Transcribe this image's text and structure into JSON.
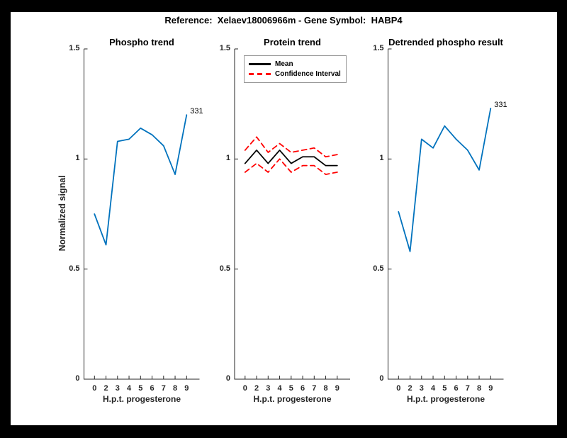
{
  "figure": {
    "title": "Reference:  Xelaev18006966m - Gene Symbol:  HABP4",
    "background_color": "#ffffff",
    "border_color": "#000000",
    "accent_blue": "#0072BD",
    "accent_red": "#ff0000"
  },
  "chart_data": [
    {
      "type": "line",
      "title": "Phospho trend",
      "xlabel": "H.p.t. progesterone",
      "ylabel": "Normalized signal",
      "categories": [
        "0",
        "2",
        "3",
        "4",
        "5",
        "6",
        "7",
        "8",
        "9"
      ],
      "yticks": [
        0,
        0.5,
        1,
        1.5
      ],
      "ytick_labels": [
        "0",
        "0.5",
        "1",
        "1.5"
      ],
      "ylim": [
        0,
        1.5
      ],
      "grid": false,
      "legend": null,
      "end_label": "331",
      "series": [
        {
          "name": "phospho-signal",
          "color": "#0072BD",
          "style": "solid",
          "line_width": 1.8,
          "values": [
            0.75,
            0.61,
            1.08,
            1.09,
            1.14,
            1.11,
            1.06,
            0.93,
            1.2
          ]
        }
      ]
    },
    {
      "type": "line",
      "title": "Protein trend",
      "xlabel": "H.p.t. progesterone",
      "ylabel": "",
      "categories": [
        "0",
        "2",
        "3",
        "4",
        "5",
        "6",
        "7",
        "8",
        "9"
      ],
      "yticks": [
        0,
        0.5,
        1,
        1.5
      ],
      "ytick_labels": [
        "0",
        "0.5",
        "1",
        "1.5"
      ],
      "ylim": [
        0,
        1.5
      ],
      "grid": false,
      "legend": {
        "position": "top-left",
        "entries": [
          {
            "label": "Mean",
            "color": "#000000",
            "style": "solid"
          },
          {
            "label": "Confidence Interval",
            "color": "#ff0000",
            "style": "dashed"
          }
        ]
      },
      "end_label": null,
      "series": [
        {
          "name": "mean",
          "color": "#000000",
          "style": "solid",
          "line_width": 1.8,
          "values": [
            0.98,
            1.04,
            0.98,
            1.04,
            0.98,
            1.01,
            1.01,
            0.97,
            0.97
          ]
        },
        {
          "name": "ci-upper",
          "color": "#ff0000",
          "style": "dashed",
          "line_width": 1.8,
          "values": [
            1.04,
            1.1,
            1.03,
            1.07,
            1.03,
            1.04,
            1.05,
            1.01,
            1.02
          ]
        },
        {
          "name": "ci-lower",
          "color": "#ff0000",
          "style": "dashed",
          "line_width": 1.8,
          "values": [
            0.94,
            0.98,
            0.94,
            1.0,
            0.94,
            0.97,
            0.97,
            0.93,
            0.94
          ]
        }
      ]
    },
    {
      "type": "line",
      "title": "Detrended phospho result",
      "xlabel": "H.p.t. progesterone",
      "ylabel": "",
      "categories": [
        "0",
        "2",
        "3",
        "4",
        "5",
        "6",
        "7",
        "8",
        "9"
      ],
      "yticks": [
        0,
        0.5,
        1,
        1.5
      ],
      "ytick_labels": [
        "0",
        "0.5",
        "1",
        "1.5"
      ],
      "ylim": [
        0,
        1.5
      ],
      "grid": false,
      "legend": null,
      "end_label": "331",
      "series": [
        {
          "name": "detrended-phospho",
          "color": "#0072BD",
          "style": "solid",
          "line_width": 1.8,
          "values": [
            0.76,
            0.58,
            1.09,
            1.05,
            1.15,
            1.09,
            1.04,
            0.95,
            1.23
          ]
        }
      ]
    }
  ]
}
